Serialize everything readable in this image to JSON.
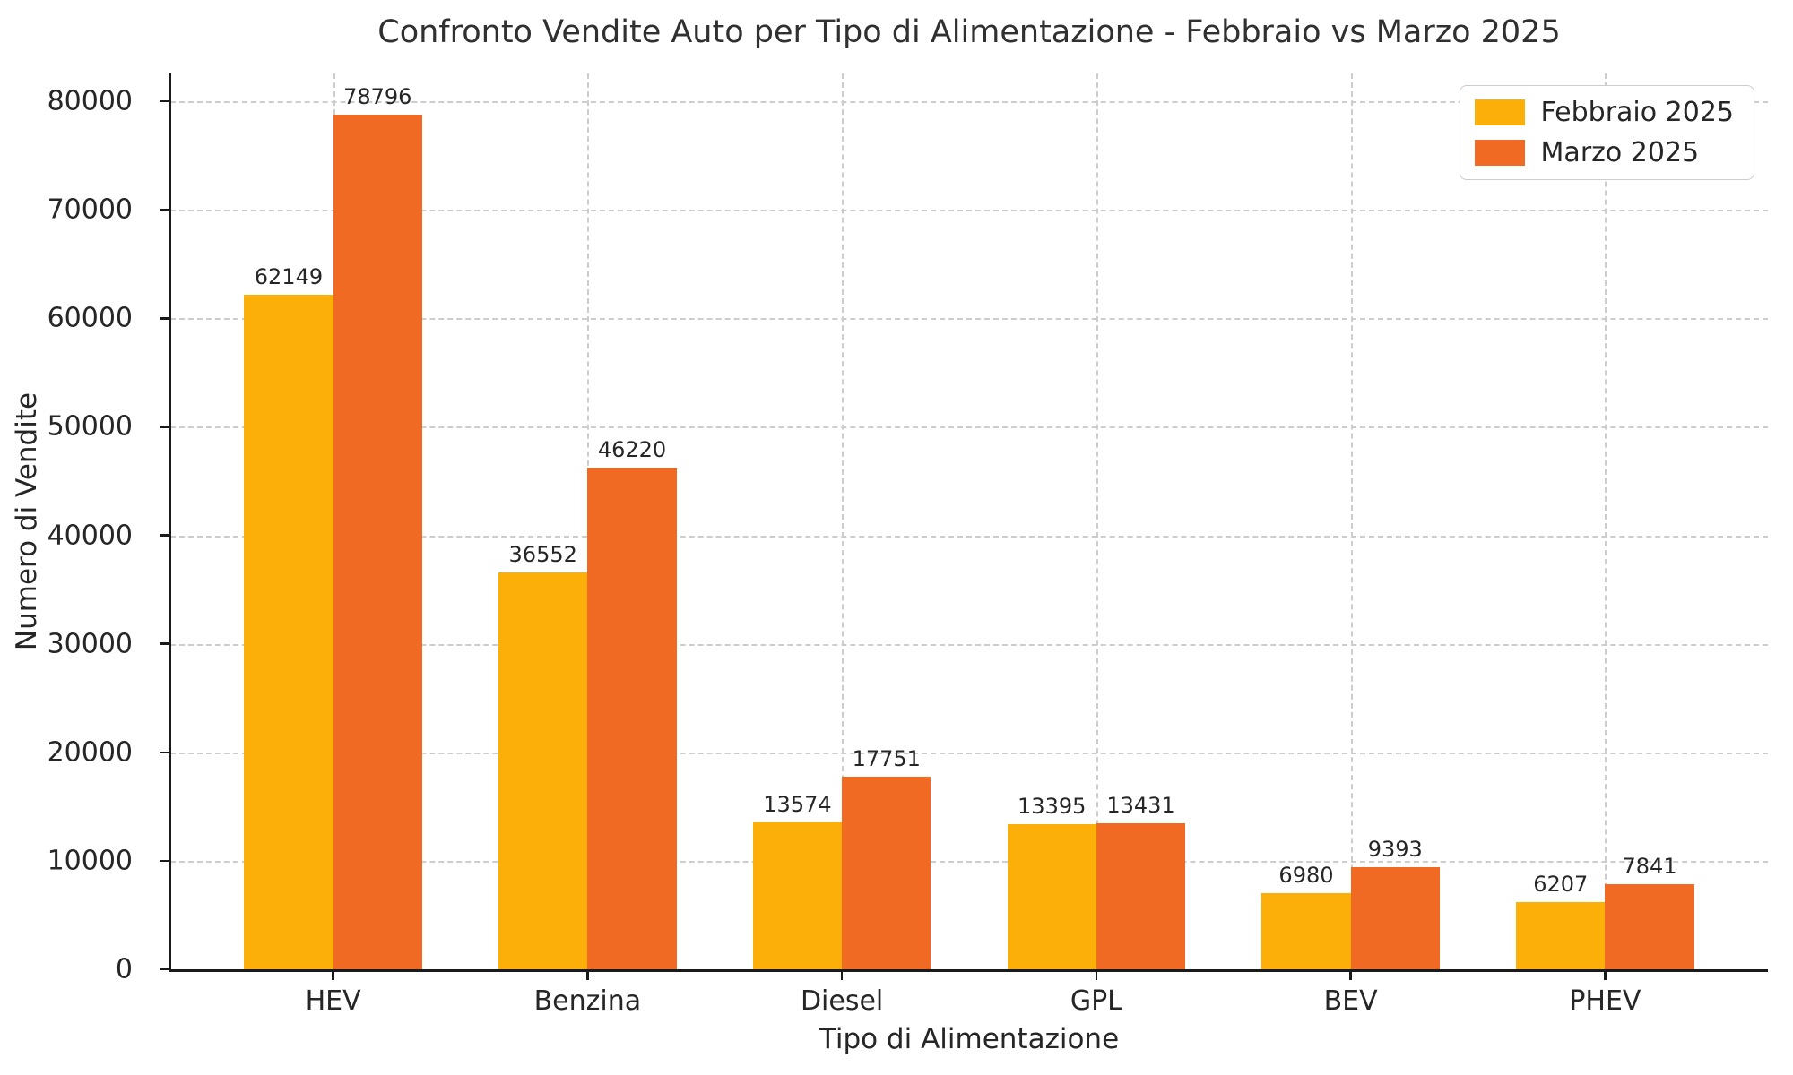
{
  "chart_data": {
    "type": "bar",
    "title": "Confronto Vendite Auto per Tipo di Alimentazione - Febbraio vs Marzo 2025",
    "xlabel": "Tipo di Alimentazione",
    "ylabel": "Numero di Vendite",
    "categories": [
      "HEV",
      "Benzina",
      "Diesel",
      "GPL",
      "BEV",
      "PHEV"
    ],
    "series": [
      {
        "name": "Febbraio 2025",
        "color": "#FCAE09",
        "values": [
          62149,
          36552,
          13574,
          13395,
          6980,
          6207
        ]
      },
      {
        "name": "Marzo 2025",
        "color": "#F16A23",
        "values": [
          78796,
          46220,
          17751,
          13431,
          9393,
          7841
        ]
      }
    ],
    "yticks": [
      0,
      10000,
      20000,
      30000,
      40000,
      50000,
      60000,
      70000,
      80000
    ],
    "ylim": [
      0,
      82560
    ],
    "bar_value_labels": true,
    "grid": {
      "style": "dashed",
      "horizontal": true,
      "vertical": true,
      "color": "#cdcdcd"
    },
    "legend_position": "upper right",
    "spine_color": "#1a1a1a",
    "text_color": "#262626"
  }
}
